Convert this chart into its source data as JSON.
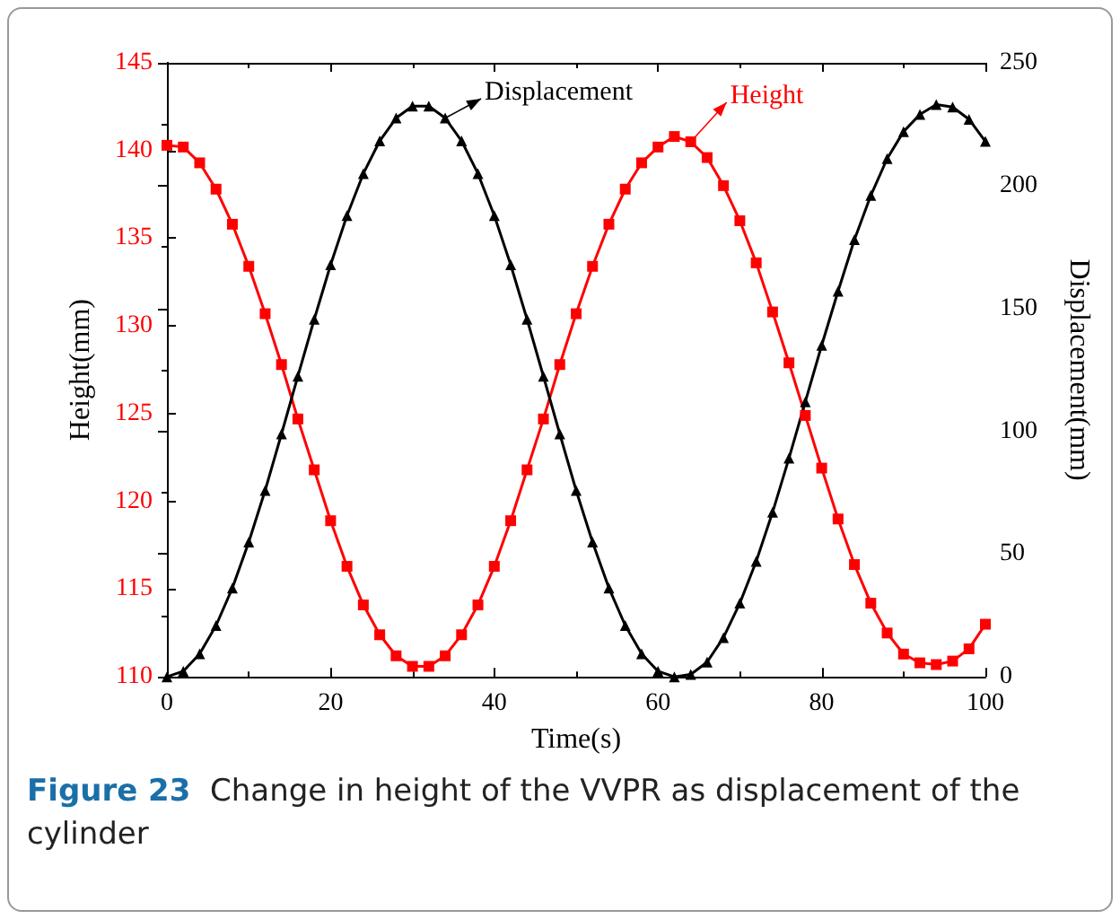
{
  "chart_data": {
    "type": "line",
    "xlabel": "Time(s)",
    "ylabel": "Height(mm)",
    "y2label": "Displacement(mm)",
    "x": [
      0,
      2,
      4,
      6,
      8,
      10,
      12,
      14,
      16,
      18,
      20,
      22,
      24,
      26,
      28,
      30,
      32,
      34,
      36,
      38,
      40,
      42,
      44,
      46,
      48,
      50,
      52,
      54,
      56,
      58,
      60,
      62,
      64,
      66,
      68,
      70,
      72,
      74,
      76,
      78,
      80,
      82,
      84,
      86,
      88,
      90,
      92,
      94,
      96,
      98,
      100
    ],
    "series": [
      {
        "name": "Height",
        "color": "#ff0000",
        "marker": "square",
        "values": [
          140.3,
          140.2,
          139.3,
          137.8,
          135.8,
          133.4,
          130.7,
          127.8,
          124.7,
          121.8,
          118.9,
          116.3,
          114.1,
          112.4,
          111.2,
          110.6,
          110.6,
          111.2,
          112.4,
          114.1,
          116.3,
          118.9,
          121.8,
          124.7,
          127.8,
          130.7,
          133.4,
          135.8,
          137.8,
          139.3,
          140.2,
          140.8,
          140.5,
          139.6,
          138.0,
          136.0,
          133.6,
          130.8,
          127.9,
          124.9,
          121.9,
          119.0,
          116.4,
          114.2,
          112.5,
          111.3,
          110.8,
          110.7,
          110.9,
          111.6,
          113.0
        ]
      },
      {
        "name": "Displacement",
        "color": "#000000",
        "marker": "triangle",
        "axis": "y2",
        "values": [
          0,
          2.3,
          9.4,
          20.9,
          36.2,
          54.9,
          75.9,
          98.9,
          122.4,
          145.6,
          167.8,
          187.8,
          204.9,
          218.2,
          227.5,
          232.4,
          232.4,
          227.5,
          218.2,
          204.9,
          187.8,
          167.8,
          145.6,
          122.4,
          98.9,
          75.9,
          54.9,
          36.2,
          20.9,
          9.4,
          2.3,
          0,
          1,
          6,
          16,
          30,
          47,
          67,
          89,
          112,
          135,
          157,
          178,
          196,
          211,
          222,
          229,
          233,
          232,
          227,
          218
        ]
      }
    ],
    "xlim": [
      0,
      100
    ],
    "xticks": [
      0,
      20,
      40,
      60,
      80,
      100
    ],
    "ylim": [
      110,
      145
    ],
    "yticks": [
      110,
      115,
      120,
      125,
      130,
      135,
      140,
      145
    ],
    "y2lim": [
      0,
      250
    ],
    "y2ticks": [
      0,
      50,
      100,
      150,
      200,
      250
    ],
    "grid": false,
    "legend": "top",
    "line_style": "solid",
    "annotations": [
      "Figure 23  Change in height of the VVPR as displacement of the cylinder"
    ]
  }
}
